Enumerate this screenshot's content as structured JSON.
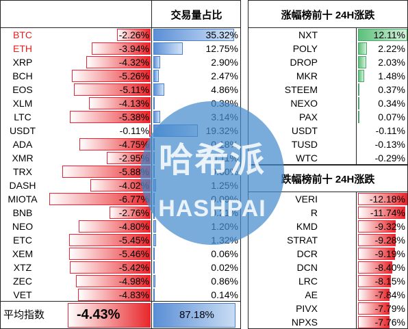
{
  "left_table": {
    "header": "交易量占比",
    "footer_label": "平均指数",
    "footer_change": "-4.43%",
    "footer_share": "87.18%"
  },
  "gainers": {
    "header": "涨幅榜前十 24H涨跌"
  },
  "losers": {
    "header": "跌幅榜前十 24H涨跌"
  },
  "colors": {
    "up": "#5cc07a",
    "down": "#e8282c",
    "share": "#5b8fd6",
    "red_text": "#e02020"
  },
  "chart_data": [
    {
      "type": "bar",
      "categories": [
        "BTC",
        "ETH",
        "XRP",
        "BCH",
        "EOS",
        "XLM",
        "LTC",
        "USDT",
        "ADA",
        "XMR",
        "TRX",
        "DASH",
        "MIOTA",
        "BNB",
        "NEO",
        "ETC",
        "XEM",
        "XTZ",
        "ZEC",
        "VET"
      ],
      "series": [
        {
          "values": [
            -2.26,
            -3.94,
            -4.32,
            -5.26,
            -5.11,
            -4.13,
            -5.38,
            -0.11,
            -4.75,
            -2.95,
            -5.88,
            -4.02,
            -6.77,
            -2.76,
            -4.8,
            -5.45,
            -5.46,
            -5.42,
            -4.98,
            -4.83
          ]
        },
        {
          "values": [
            35.32,
            12.75,
            2.9,
            2.47,
            4.86,
            0.38,
            3.14,
            19.32,
            0.18,
            0.11,
            0.6,
            1.25,
            0.09,
            0.21,
            1.2,
            1.32,
            0.06,
            0.02,
            0.86,
            0.14
          ]
        }
      ],
      "labels_change": [
        "-2.26%",
        "-3.94%",
        "-4.32%",
        "-5.26%",
        "-5.11%",
        "-4.13%",
        "-5.38%",
        "-0.11%",
        "-4.75%",
        "-2.95%",
        "-5.88%",
        "-4.02%",
        "-6.77%",
        "-2.76%",
        "-4.80%",
        "-5.45%",
        "-5.46%",
        "-5.42%",
        "-4.98%",
        "-4.83%"
      ],
      "labels_share": [
        "35.32%",
        "12.75%",
        "2.90%",
        "2.47%",
        "4.86%",
        "0.38%",
        "3.14%",
        "19.32%",
        "0.18%",
        "0.11%",
        "0.60%",
        "1.25%",
        "0.09%",
        "0.21%",
        "1.20%",
        "1.32%",
        "0.06%",
        "0.02%",
        "0.86%",
        "0.14%"
      ],
      "red_names": [
        "BTC",
        "ETH"
      ]
    },
    {
      "type": "bar",
      "title": "涨幅榜前十 24H涨跌",
      "categories": [
        "NXT",
        "POLY",
        "DROP",
        "MKR",
        "STEEM",
        "NEXO",
        "PAX",
        "USDT",
        "TUSD",
        "WTC"
      ],
      "values": [
        12.11,
        2.22,
        2.03,
        1.48,
        0.37,
        0.34,
        0.07,
        -0.11,
        -0.13,
        -0.29
      ],
      "labels": [
        "12.11%",
        "2.22%",
        "2.03%",
        "1.48%",
        "0.37%",
        "0.34%",
        "0.07%",
        "-0.11%",
        "-0.13%",
        "-0.29%"
      ]
    },
    {
      "type": "bar",
      "title": "跌幅榜前十 24H涨跌",
      "categories": [
        "VERI",
        "R",
        "KMD",
        "STRAT",
        "DCR",
        "DCN",
        "LRC",
        "AE",
        "PIVX",
        "NPXS"
      ],
      "values": [
        -12.18,
        -11.74,
        -9.32,
        -9.28,
        -9.19,
        -8.4,
        -8.15,
        -7.84,
        -7.79,
        -7.76
      ],
      "labels": [
        "-12.18%",
        "-11.74%",
        "-9.32%",
        "-9.28%",
        "-9.19%",
        "-8.40%",
        "-8.15%",
        "-7.84%",
        "-7.79%",
        "-7.76%"
      ]
    }
  ],
  "watermark": {
    "cn": "哈希派",
    "en": "HASHPAI"
  }
}
